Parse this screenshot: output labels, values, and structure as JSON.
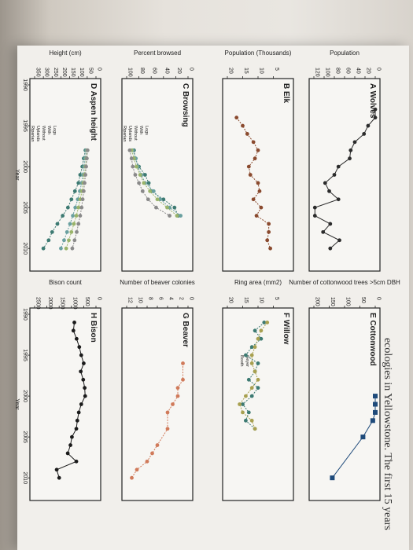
{
  "caption": "ecologies in Yellowstone. The first 15 years",
  "chart_data": [
    {
      "type": "line",
      "panel": "A",
      "title": "Wolves",
      "ylabel": "Population",
      "xlabel": "",
      "xlim": [
        1990,
        2012
      ],
      "ylim": [
        0,
        120
      ],
      "yticks": [
        "0",
        "20",
        "40",
        "60",
        "80",
        "100",
        "120"
      ],
      "xticks": [],
      "color": "#2b2b2b",
      "marker": "circle",
      "series": [
        {
          "name": "",
          "x": [
            1993,
            1994,
            1995,
            1996,
            1997,
            1998,
            1999,
            2000,
            2001,
            2002,
            2003,
            2004,
            2005,
            2006,
            2007,
            2008,
            2009,
            2010
          ],
          "values": [
            0,
            0,
            14,
            22,
            40,
            48,
            50,
            72,
            80,
            98,
            90,
            72,
            118,
            118,
            88,
            102,
            70,
            88
          ]
        }
      ]
    },
    {
      "type": "line",
      "panel": "B",
      "title": "Elk",
      "ylabel": "Population (Thousands)",
      "xlabel": "",
      "xlim": [
        1990,
        2012
      ],
      "ylim": [
        0,
        20
      ],
      "yticks": [
        "5",
        "10",
        "15",
        "20"
      ],
      "xticks": [],
      "color": "#8a4a2e",
      "marker": "circle",
      "series": [
        {
          "name": "",
          "x": [
            1994,
            1995,
            1996,
            1997,
            1998,
            1999,
            2000,
            2001,
            2002,
            2003,
            2004,
            2005,
            2006,
            2007,
            2008,
            2009,
            2010
          ],
          "values": [
            17,
            15,
            13.5,
            11.5,
            10,
            11,
            13,
            12.5,
            10,
            9.5,
            11.5,
            9,
            10.5,
            6.5,
            6.5,
            7,
            6
          ]
        }
      ]
    },
    {
      "type": "line",
      "panel": "C",
      "title": "Browsing",
      "ylabel": "Percent browsed",
      "xlabel": "",
      "xlim": [
        1990,
        2012
      ],
      "ylim": [
        0,
        100
      ],
      "yticks": [
        "0",
        "20",
        "40",
        "60",
        "80",
        "100"
      ],
      "xticks": [],
      "legend": [
        "Logs",
        "With",
        "Without",
        "Uplands",
        "Riparian"
      ],
      "series": [
        {
          "name": "Uplands",
          "color": "#3d7a72",
          "x": [
            1998,
            1999,
            2000,
            2001,
            2002,
            2003,
            2004,
            2005,
            2006
          ],
          "values": [
            88,
            86,
            80,
            70,
            64,
            60,
            40,
            22,
            16
          ]
        },
        {
          "name": "Uplands",
          "color": "#6aa0a0",
          "x": [
            1998,
            1999,
            2000,
            2001,
            2002,
            2003,
            2004,
            2005,
            2006
          ],
          "values": [
            90,
            85,
            82,
            76,
            70,
            56,
            45,
            30,
            12
          ]
        },
        {
          "name": "Riparian",
          "color": "#9ab46a",
          "x": [
            1998,
            1999,
            2000,
            2001,
            2002,
            2003,
            2004,
            2005,
            2006
          ],
          "values": [
            92,
            88,
            84,
            78,
            72,
            62,
            50,
            34,
            18
          ]
        },
        {
          "name": "Riparian",
          "color": "#8a8a8a",
          "x": [
            1998,
            1999,
            2000,
            2001,
            2002,
            2003,
            2004,
            2005,
            2006
          ],
          "values": [
            95,
            92,
            90,
            86,
            80,
            74,
            65,
            52,
            30
          ]
        }
      ]
    },
    {
      "type": "line",
      "panel": "D",
      "title": "Aspen height",
      "ylabel": "Height (cm)",
      "xlabel": "Year",
      "xlim": [
        1990,
        2012
      ],
      "ylim": [
        0,
        350
      ],
      "yticks": [
        "0",
        "50",
        "100",
        "150",
        "200",
        "250",
        "300",
        "350"
      ],
      "xticks": [
        "1990",
        "1995",
        "2000",
        "2005",
        "2010"
      ],
      "legend": [
        "Logs",
        "With",
        "Without",
        "Uplands",
        "Riparian"
      ],
      "series": [
        {
          "name": "Uplands",
          "color": "#3d7a72",
          "x": [
            1998,
            1999,
            2000,
            2001,
            2002,
            2003,
            2004,
            2005,
            2006,
            2007,
            2008,
            2009,
            2010
          ],
          "values": [
            60,
            70,
            78,
            90,
            100,
            120,
            140,
            160,
            190,
            220,
            250,
            270,
            300
          ]
        },
        {
          "name": "Uplands",
          "color": "#6aa0a0",
          "x": [
            1998,
            1999,
            2000,
            2001,
            2002,
            2003,
            2004,
            2005,
            2006,
            2007,
            2008,
            2009,
            2010
          ],
          "values": [
            55,
            62,
            68,
            75,
            82,
            92,
            104,
            118,
            132,
            148,
            165,
            182,
            200
          ]
        },
        {
          "name": "Riparian",
          "color": "#9ab46a",
          "x": [
            1998,
            1999,
            2000,
            2001,
            2002,
            2003,
            2004,
            2005,
            2006,
            2007,
            2008,
            2009,
            2010
          ],
          "values": [
            50,
            55,
            60,
            66,
            72,
            80,
            90,
            100,
            112,
            126,
            140,
            155,
            170
          ]
        },
        {
          "name": "Riparian",
          "color": "#8a8a8a",
          "x": [
            1998,
            1999,
            2000,
            2001,
            2002,
            2003,
            2004,
            2005,
            2006,
            2007,
            2008,
            2009,
            2010
          ],
          "values": [
            48,
            52,
            56,
            60,
            65,
            70,
            76,
            82,
            90,
            100,
            110,
            122,
            135
          ]
        }
      ]
    },
    {
      "type": "line",
      "panel": "E",
      "title": "Cottonwood",
      "ylabel": "Number of cottonwood trees >5cm DBH",
      "xlabel": "",
      "xlim": [
        1990,
        2012
      ],
      "ylim": [
        0,
        200
      ],
      "yticks": [
        "0",
        "50",
        "100",
        "150",
        "200"
      ],
      "xticks": [],
      "color": "#1e4a7a",
      "marker": "square",
      "series": [
        {
          "name": "",
          "x": [
            2000,
            2001,
            2002,
            2003,
            2005,
            2010
          ],
          "values": [
            0,
            0,
            0,
            8,
            40,
            140
          ]
        }
      ]
    },
    {
      "type": "line",
      "panel": "F",
      "title": "Willow",
      "ylabel": "Ring area (mm2)",
      "xlabel": "",
      "xlim": [
        1990,
        2012
      ],
      "ylim": [
        0,
        20
      ],
      "yticks": [
        "5",
        "10",
        "15",
        "20"
      ],
      "xticks": [],
      "legend": [
        "Geyer",
        "Booth"
      ],
      "series": [
        {
          "name": "Geyer",
          "color": "#3d7a72",
          "x": [
            1991,
            1992,
            1993,
            1994,
            1995,
            1996,
            1997,
            1998,
            1999,
            2000,
            2001,
            2002,
            2003,
            2004
          ],
          "values": [
            8,
            11,
            9,
            12,
            14,
            10,
            11,
            13,
            10,
            12,
            15,
            13,
            14,
            11
          ]
        },
        {
          "name": "Booth",
          "color": "#a8a050",
          "x": [
            1991,
            1992,
            1993,
            1994,
            1995,
            1996,
            1997,
            1998,
            1999,
            2000,
            2001,
            2002,
            2003,
            2004
          ],
          "values": [
            7,
            9,
            10,
            11,
            12,
            12,
            11,
            10,
            12,
            14,
            16,
            15,
            12,
            11
          ]
        }
      ]
    },
    {
      "type": "line",
      "panel": "G",
      "title": "Beaver",
      "ylabel": "Number of beaver colonies",
      "xlabel": "",
      "xlim": [
        1990,
        2012
      ],
      "ylim": [
        0,
        12
      ],
      "yticks": [
        "0",
        "2",
        "4",
        "6",
        "8",
        "10",
        "12"
      ],
      "xticks": [],
      "color": "#d07a5a",
      "marker": "circle",
      "series": [
        {
          "name": "",
          "x": [
            1996,
            1998,
            1999,
            2000,
            2001,
            2002,
            2004,
            2006,
            2007,
            2008,
            2009,
            2010
          ],
          "values": [
            1,
            1,
            2,
            2,
            3,
            4,
            4,
            6,
            7,
            8,
            10,
            11
          ]
        }
      ]
    },
    {
      "type": "line",
      "panel": "H",
      "title": "Bison",
      "ylabel": "Bison count",
      "xlabel": "Year",
      "xlim": [
        1990,
        2012
      ],
      "ylim": [
        0,
        2500
      ],
      "yticks": [
        "0",
        "500",
        "1000",
        "1500",
        "2000",
        "2500"
      ],
      "xticks": [
        "1990",
        "1995",
        "2000",
        "2005",
        "2010"
      ],
      "color": "#1a1a1a",
      "marker": "circle",
      "series": [
        {
          "name": "",
          "x": [
            1991,
            1992,
            1993,
            1994,
            1995,
            1996,
            1997,
            1998,
            1999,
            2000,
            2001,
            2002,
            2003,
            2004,
            2005,
            2006,
            2007,
            2008,
            2009,
            2010
          ],
          "values": [
            880,
            920,
            790,
            680,
            600,
            500,
            620,
            520,
            460,
            440,
            600,
            700,
            760,
            800,
            980,
            1040,
            1150,
            800,
            1600,
            1500
          ]
        }
      ]
    }
  ]
}
